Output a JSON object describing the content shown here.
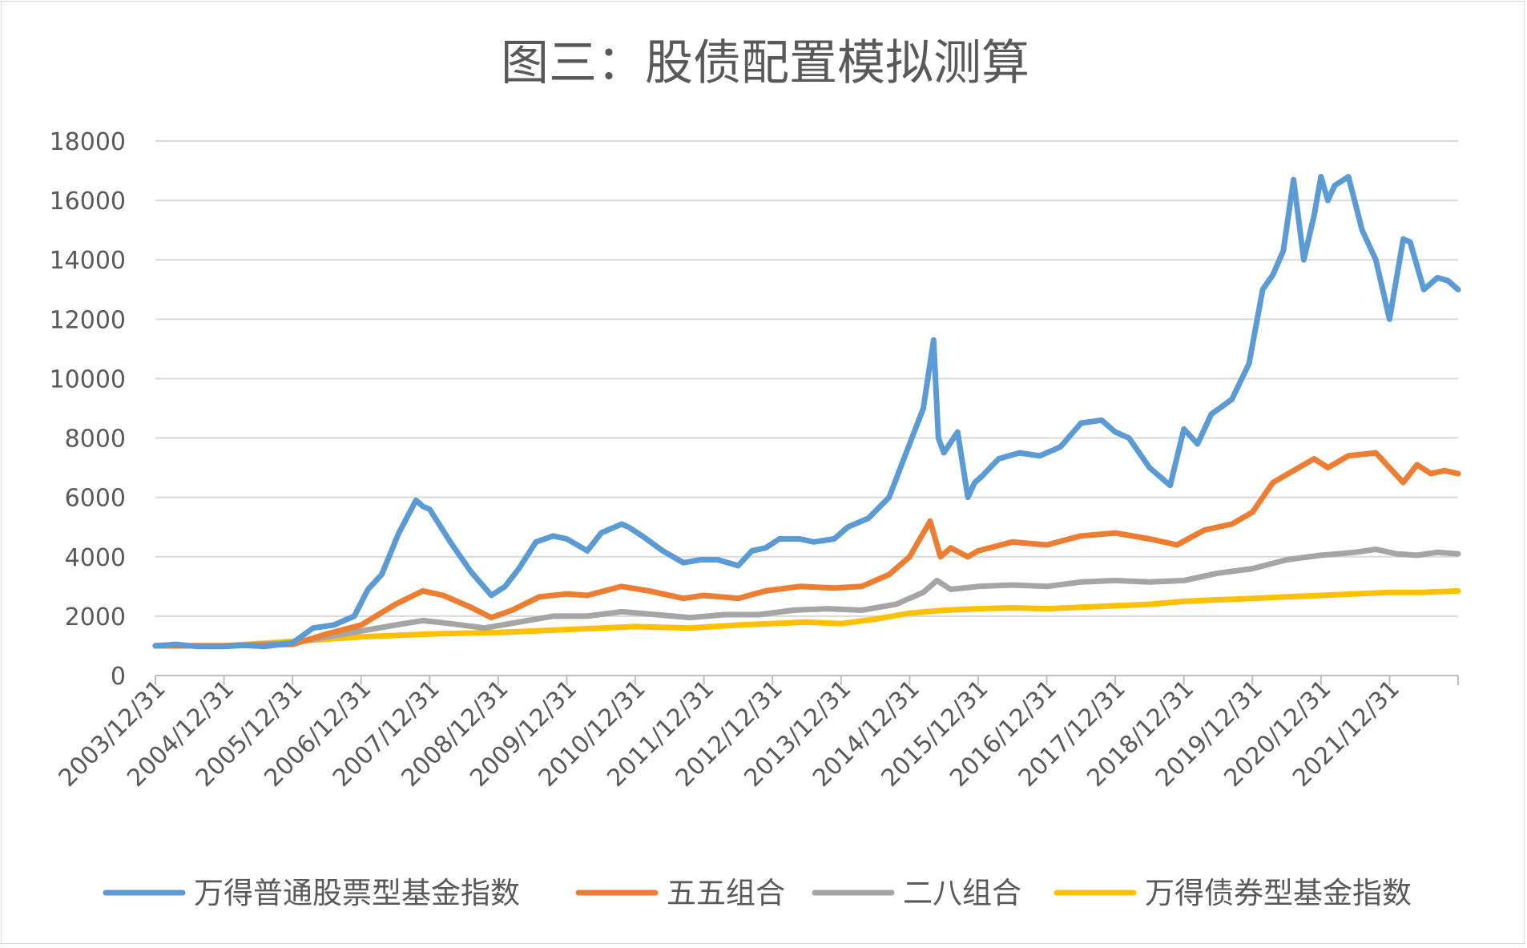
{
  "chart_data": {
    "type": "line",
    "title": "图三：股债配置模拟测算",
    "xlabel": "",
    "ylabel": "",
    "ylim": [
      0,
      18000
    ],
    "y_ticks": [
      "0",
      "2000",
      "4000",
      "6000",
      "8000",
      "10000",
      "12000",
      "14000",
      "16000",
      "18000"
    ],
    "x_tick_labels": [
      "2003/12/31",
      "2004/12/31",
      "2005/12/31",
      "2006/12/31",
      "2007/12/31",
      "2008/12/31",
      "2009/12/31",
      "2010/12/31",
      "2011/12/31",
      "2012/12/31",
      "2013/12/31",
      "2014/12/31",
      "2015/12/31",
      "2016/12/31",
      "2017/12/31",
      "2018/12/31",
      "2019/12/31",
      "2020/12/31",
      "2021/12/31"
    ],
    "x_range": [
      2004.0,
      2023.0
    ],
    "grid": true,
    "legend_position": "bottom",
    "series": [
      {
        "name": "万得普通股票型基金指数",
        "color": "#5b9bd5",
        "x": [
          2004.0,
          2004.3,
          2004.6,
          2005.0,
          2005.3,
          2005.6,
          2006.0,
          2006.3,
          2006.6,
          2006.9,
          2007.1,
          2007.3,
          2007.55,
          2007.8,
          2007.9,
          2008.0,
          2008.3,
          2008.6,
          2008.9,
          2009.1,
          2009.3,
          2009.55,
          2009.8,
          2010.0,
          2010.3,
          2010.5,
          2010.8,
          2010.9,
          2011.1,
          2011.4,
          2011.7,
          2011.95,
          2012.2,
          2012.5,
          2012.7,
          2012.9,
          2013.1,
          2013.4,
          2013.6,
          2013.9,
          2014.1,
          2014.4,
          2014.7,
          2014.9,
          2015.2,
          2015.35,
          2015.42,
          2015.5,
          2015.7,
          2015.85,
          2015.95,
          2016.05,
          2016.3,
          2016.6,
          2016.9,
          2017.2,
          2017.5,
          2017.8,
          2018.0,
          2018.2,
          2018.5,
          2018.8,
          2019.0,
          2019.2,
          2019.4,
          2019.7,
          2019.95,
          2020.15,
          2020.3,
          2020.45,
          2020.6,
          2020.75,
          2020.9,
          2021.0,
          2021.1,
          2021.2,
          2021.4,
          2021.6,
          2021.8,
          2022.0,
          2022.2,
          2022.3,
          2022.5,
          2022.7,
          2022.85,
          2023.0
        ],
        "values": [
          1000,
          1050,
          980,
          980,
          1020,
          980,
          1100,
          1600,
          1700,
          2000,
          2900,
          3400,
          4800,
          5900,
          5700,
          5600,
          4500,
          3500,
          2700,
          3000,
          3600,
          4500,
          4700,
          4600,
          4200,
          4800,
          5100,
          5000,
          4700,
          4200,
          3800,
          3900,
          3900,
          3700,
          4200,
          4300,
          4600,
          4600,
          4500,
          4600,
          5000,
          5300,
          6000,
          7200,
          9000,
          11300,
          8000,
          7500,
          8200,
          6000,
          6500,
          6700,
          7300,
          7500,
          7400,
          7700,
          8500,
          8600,
          8200,
          8000,
          7000,
          6400,
          8300,
          7800,
          8800,
          9300,
          10500,
          13000,
          13500,
          14300,
          16700,
          14000,
          15500,
          16800,
          16000,
          16500,
          16800,
          15000,
          14000,
          12000,
          14700,
          14600,
          13000,
          13400,
          13300,
          13000
        ]
      },
      {
        "name": "五五组合",
        "color": "#ed7d31",
        "x": [
          2004.0,
          2005.0,
          2006.0,
          2006.5,
          2007.0,
          2007.5,
          2007.9,
          2008.2,
          2008.6,
          2008.9,
          2009.2,
          2009.6,
          2010.0,
          2010.3,
          2010.8,
          2011.2,
          2011.7,
          2012.0,
          2012.5,
          2012.9,
          2013.4,
          2013.9,
          2014.3,
          2014.7,
          2015.0,
          2015.3,
          2015.45,
          2015.6,
          2015.85,
          2016.0,
          2016.5,
          2017.0,
          2017.5,
          2018.0,
          2018.5,
          2018.9,
          2019.3,
          2019.7,
          2020.0,
          2020.3,
          2020.6,
          2020.9,
          2021.1,
          2021.4,
          2021.8,
          2022.0,
          2022.2,
          2022.4,
          2022.6,
          2022.8,
          2023.0
        ],
        "values": [
          1000,
          1000,
          1050,
          1400,
          1700,
          2400,
          2850,
          2700,
          2300,
          1950,
          2200,
          2650,
          2750,
          2700,
          3000,
          2850,
          2600,
          2700,
          2600,
          2850,
          3000,
          2950,
          3000,
          3400,
          4000,
          5200,
          4000,
          4300,
          4000,
          4200,
          4500,
          4400,
          4700,
          4800,
          4600,
          4400,
          4900,
          5100,
          5500,
          6500,
          6900,
          7300,
          7000,
          7400,
          7500,
          7000,
          6500,
          7100,
          6800,
          6900,
          6800
        ]
      },
      {
        "name": "二八组合",
        "color": "#a5a5a5",
        "x": [
          2004.0,
          2005.0,
          2006.0,
          2006.5,
          2007.0,
          2007.5,
          2007.9,
          2008.3,
          2008.8,
          2009.3,
          2009.8,
          2010.3,
          2010.8,
          2011.3,
          2011.8,
          2012.3,
          2012.8,
          2013.3,
          2013.8,
          2014.3,
          2014.8,
          2015.2,
          2015.4,
          2015.6,
          2016.0,
          2016.5,
          2017.0,
          2017.5,
          2018.0,
          2018.5,
          2019.0,
          2019.5,
          2020.0,
          2020.5,
          2021.0,
          2021.5,
          2021.8,
          2022.1,
          2022.4,
          2022.7,
          2023.0
        ],
        "values": [
          1000,
          1000,
          1100,
          1300,
          1500,
          1700,
          1850,
          1750,
          1600,
          1800,
          2000,
          2000,
          2150,
          2050,
          1950,
          2050,
          2050,
          2200,
          2250,
          2200,
          2400,
          2800,
          3200,
          2900,
          3000,
          3050,
          3000,
          3150,
          3200,
          3150,
          3200,
          3450,
          3600,
          3900,
          4050,
          4150,
          4250,
          4100,
          4050,
          4150,
          4100
        ]
      },
      {
        "name": "万得债券型基金指数",
        "color": "#ffc000",
        "x": [
          2004.0,
          2005.0,
          2006.0,
          2007.0,
          2008.0,
          2009.0,
          2010.0,
          2011.0,
          2011.8,
          2012.5,
          2013.5,
          2014.0,
          2014.5,
          2015.0,
          2015.5,
          2016.0,
          2016.5,
          2017.0,
          2017.5,
          2018.0,
          2018.5,
          2019.0,
          2019.5,
          2020.0,
          2020.5,
          2021.0,
          2021.5,
          2022.0,
          2022.5,
          2023.0
        ],
        "values": [
          1000,
          1000,
          1150,
          1300,
          1400,
          1450,
          1550,
          1650,
          1600,
          1700,
          1800,
          1750,
          1900,
          2100,
          2200,
          2250,
          2280,
          2250,
          2300,
          2350,
          2400,
          2500,
          2550,
          2600,
          2650,
          2700,
          2750,
          2800,
          2800,
          2850
        ]
      }
    ]
  }
}
